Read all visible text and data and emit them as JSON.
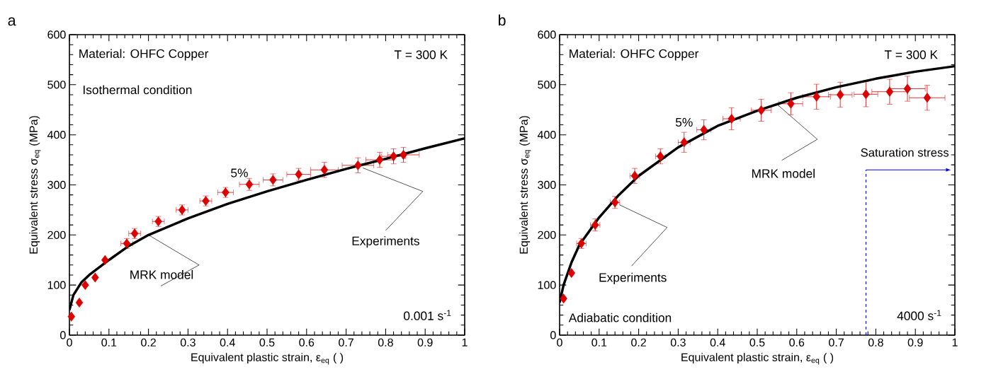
{
  "chart_data": [
    {
      "type": "scatter",
      "title": "a",
      "xlabel": "Equivalent plastic strain, ε$_{eq}$ ( )",
      "ylabel": "Equivalent stress  σ$_{eq}$ (MPa)",
      "xlim": [
        0,
        1
      ],
      "ylim": [
        0,
        600
      ],
      "xticks": [
        0,
        0.1,
        0.2,
        0.3,
        0.4,
        0.5,
        0.6,
        0.7,
        0.8,
        0.9,
        1
      ],
      "yticks": [
        0,
        100,
        200,
        300,
        400,
        500,
        600
      ],
      "grid": false,
      "series": [
        {
          "type": "scatter",
          "marker": "diamond",
          "color": "#dd0000",
          "x": [
            0.005,
            0.025,
            0.04,
            0.065,
            0.09,
            0.145,
            0.165,
            0.225,
            0.285,
            0.345,
            0.395,
            0.455,
            0.515,
            0.58,
            0.645,
            0.73,
            0.785,
            0.82,
            0.845
          ],
          "values": [
            37,
            65,
            100,
            115,
            150,
            183,
            203,
            227,
            250,
            268,
            285,
            301,
            310,
            321,
            330,
            339,
            350,
            357,
            360
          ],
          "errors": [
            null,
            null,
            null,
            null,
            null,
            10,
            10,
            10,
            10,
            10,
            10,
            12,
            12,
            12,
            15,
            15,
            15,
            15,
            15
          ],
          "xerrors": [
            null,
            null,
            null,
            null,
            null,
            0.015,
            0.015,
            0.015,
            0.015,
            0.015,
            0.02,
            0.025,
            0.025,
            0.03,
            0.035,
            0.04,
            0.035,
            0.03,
            0.04
          ]
        },
        {
          "type": "line",
          "color": "#000000",
          "line_style": "solid",
          "x": [
            0,
            0.01,
            0.03,
            0.05,
            0.1,
            0.15,
            0.2,
            0.3,
            0.4,
            0.5,
            0.6,
            0.7,
            0.8,
            0.9,
            1
          ],
          "values": [
            50,
            80,
            105,
            120,
            150,
            178,
            200,
            233,
            262,
            287,
            310,
            332,
            352,
            373,
            393
          ]
        }
      ],
      "annotations": [
        "Material: OHFC Copper",
        "T = 300 K",
        "Isothermal condition",
        {
          "text": "5%",
          "x": 0.455,
          "y": 301
        },
        {
          "text": "MRK model",
          "x": 0.2,
          "y": 200
        },
        {
          "text": "Experiments",
          "x": 0.73,
          "y": 339
        },
        "0.001 s$^{-1}$"
      ]
    },
    {
      "type": "scatter",
      "title": "b",
      "xlabel": "Equivalent plastic strain, ε$_{eq}$ ( )",
      "ylabel": "Equivalent stress  σ$_{eq}$ (MPa)",
      "xlim": [
        0,
        1
      ],
      "ylim": [
        0,
        600
      ],
      "xticks": [
        0,
        0.1,
        0.2,
        0.3,
        0.4,
        0.5,
        0.6,
        0.7,
        0.8,
        0.9,
        1
      ],
      "yticks": [
        0,
        100,
        200,
        300,
        400,
        500,
        600
      ],
      "grid": false,
      "series": [
        {
          "type": "scatter",
          "marker": "diamond",
          "color": "#dd0000",
          "x": [
            0.01,
            0.03,
            0.055,
            0.09,
            0.14,
            0.19,
            0.255,
            0.315,
            0.365,
            0.435,
            0.51,
            0.585,
            0.65,
            0.71,
            0.775,
            0.835,
            0.88,
            0.93
          ],
          "values": [
            73,
            124,
            183,
            220,
            265,
            318,
            357,
            385,
            410,
            432,
            449,
            462,
            476,
            480,
            481,
            486,
            492,
            474
          ],
          "errors": [
            null,
            null,
            10,
            12,
            12,
            15,
            15,
            20,
            20,
            22,
            22,
            22,
            25,
            25,
            25,
            25,
            25,
            25
          ],
          "xerrors": [
            null,
            null,
            0.012,
            0.012,
            0.012,
            0.012,
            0.012,
            0.015,
            0.018,
            0.022,
            0.025,
            0.03,
            0.035,
            0.03,
            0.03,
            0.045,
            0.045,
            0.045
          ]
        },
        {
          "type": "line",
          "color": "#000000",
          "line_style": "solid",
          "x": [
            0,
            0.01,
            0.03,
            0.05,
            0.1,
            0.15,
            0.2,
            0.3,
            0.4,
            0.5,
            0.6,
            0.7,
            0.8,
            0.9,
            1
          ],
          "values": [
            65,
            100,
            145,
            180,
            235,
            280,
            318,
            375,
            418,
            448,
            474,
            495,
            512,
            526,
            537
          ]
        }
      ],
      "ref_lines": [
        {
          "axis": "x",
          "value": 0.775,
          "label": "Saturation stress",
          "color": "#0000ff",
          "line_style": "dashed"
        }
      ],
      "annotations": [
        "Material: OHFC Copper",
        "T = 300 K",
        "Adiabatic condition",
        {
          "text": "5%",
          "x": 0.365,
          "y": 410
        },
        {
          "text": "MRK model",
          "x": 0.55,
          "y": 461
        },
        {
          "text": "Experiments",
          "x": 0.14,
          "y": 265
        },
        "4000 s$^{-1}$"
      ]
    }
  ]
}
